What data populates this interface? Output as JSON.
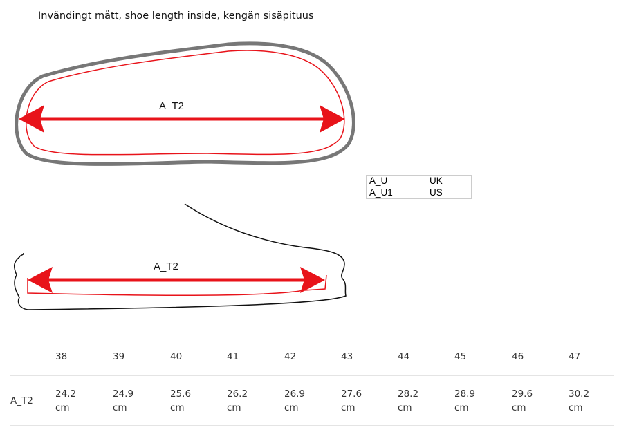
{
  "title": "Invändingt mått, shoe length inside, kengän sisäpituus",
  "diagram": {
    "top_label": "A_T2",
    "side_label": "A_T2"
  },
  "legend": {
    "rows": [
      [
        "A_U",
        "UK"
      ],
      [
        "A_U1",
        "US"
      ]
    ]
  },
  "size_table": {
    "header": [
      "38",
      "39",
      "40",
      "41",
      "42",
      "43",
      "44",
      "45",
      "46",
      "47"
    ],
    "rows": [
      [
        "A_T2",
        "24.2 cm",
        "24.9 cm",
        "25.6 cm",
        "26.2 cm",
        "26.9 cm",
        "27.6 cm",
        "28.2 cm",
        "28.9 cm",
        "29.6 cm",
        "30.2 cm"
      ]
    ]
  }
}
